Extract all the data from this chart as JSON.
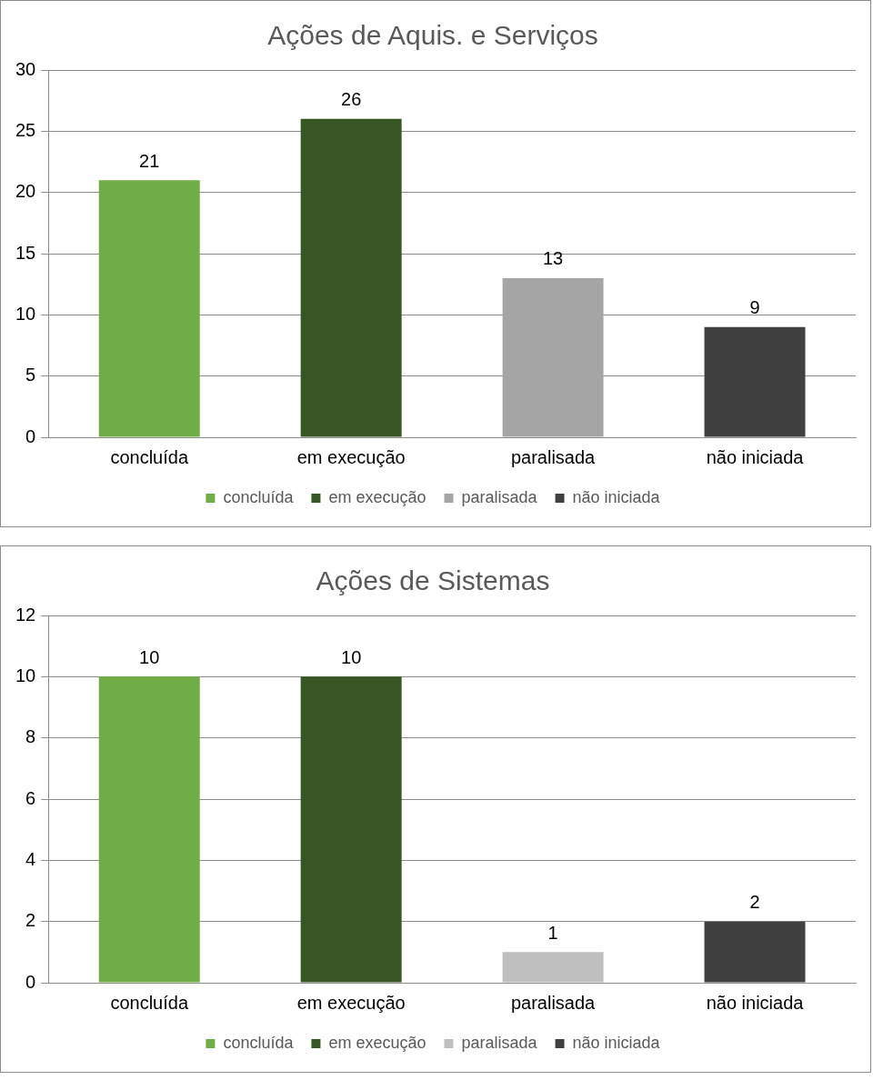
{
  "chart_data": [
    {
      "type": "bar",
      "title": "Ações de Aquis. e Serviços",
      "categories": [
        "concluída",
        "em execução",
        "paralisada",
        "não iniciada"
      ],
      "series": [
        {
          "name": "concluída",
          "color": "#70ad47",
          "values": [
            21,
            null,
            null,
            null
          ]
        },
        {
          "name": "em execução",
          "color": "#375623",
          "values": [
            null,
            26,
            null,
            null
          ]
        },
        {
          "name": "paralisada",
          "color": "#a5a5a5",
          "values": [
            null,
            null,
            13,
            null
          ]
        },
        {
          "name": "não iniciada",
          "color": "#404040",
          "values": [
            null,
            null,
            null,
            9
          ]
        }
      ],
      "ylim": [
        0,
        30
      ],
      "yticks": [
        0,
        5,
        10,
        15,
        20,
        25,
        30
      ],
      "grid": "y",
      "legend": "bottom",
      "data_labels": true
    },
    {
      "type": "bar",
      "title": "Ações de Sistemas",
      "categories": [
        "concluída",
        "em execução",
        "paralisada",
        "não iniciada"
      ],
      "series": [
        {
          "name": "concluída",
          "color": "#70ad47",
          "values": [
            10,
            null,
            null,
            null
          ]
        },
        {
          "name": "em execução",
          "color": "#375623",
          "values": [
            null,
            10,
            null,
            null
          ]
        },
        {
          "name": "paralisada",
          "color": "#bfbfbf",
          "values": [
            null,
            null,
            1,
            null
          ]
        },
        {
          "name": "não iniciada",
          "color": "#404040",
          "values": [
            null,
            null,
            null,
            2
          ]
        }
      ],
      "ylim": [
        0,
        12
      ],
      "yticks": [
        0,
        2,
        4,
        6,
        8,
        10,
        12
      ],
      "grid": "y",
      "legend": "bottom",
      "data_labels": true
    }
  ]
}
